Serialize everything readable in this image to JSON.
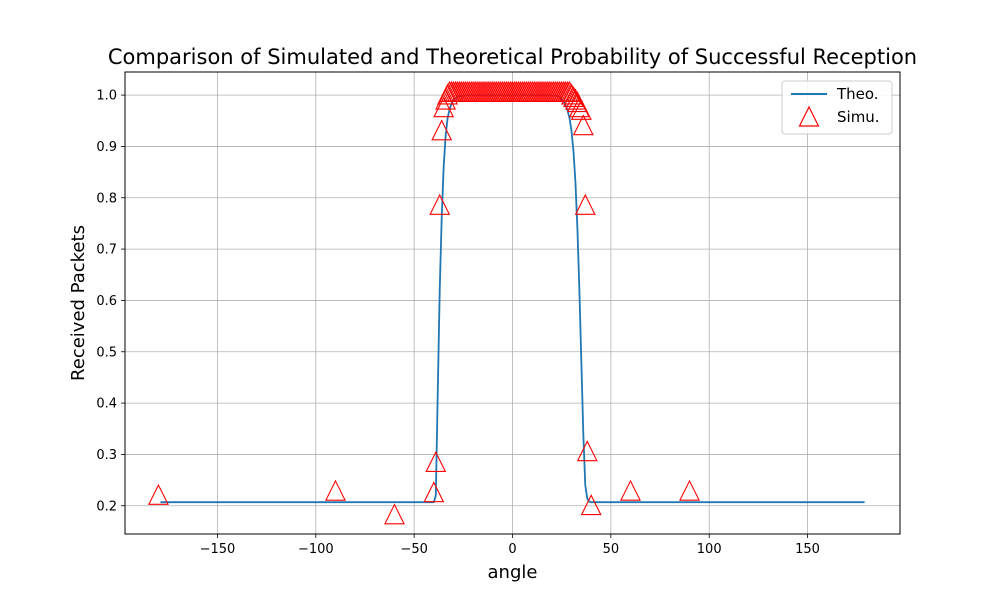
{
  "chart_data": {
    "type": "line",
    "title": "Comparison of Simulated and Theoretical Probability of Successful Reception",
    "xlabel": "angle",
    "ylabel": "Received Packets",
    "xlim": [
      -197,
      197
    ],
    "ylim": [
      0.145,
      1.045
    ],
    "xticks": [
      -150,
      -100,
      -50,
      0,
      50,
      100,
      150
    ],
    "yticks": [
      0.2,
      0.3,
      0.4,
      0.5,
      0.6,
      0.7,
      0.8,
      0.9,
      1.0
    ],
    "xtick_labels": [
      "−150",
      "−100",
      "−50",
      "0",
      "50",
      "100",
      "150"
    ],
    "ytick_labels": [
      "0.2",
      "0.3",
      "0.4",
      "0.5",
      "0.6",
      "0.7",
      "0.8",
      "0.9",
      "1.0"
    ],
    "grid": true,
    "legend": {
      "position": "top-right",
      "entries": [
        "Theo.",
        "Simu."
      ]
    },
    "colors": {
      "theo": "#1f77b4",
      "simu": "#ff0000"
    },
    "series": [
      {
        "name": "Theo.",
        "style": "line",
        "x": [
          -179,
          -40,
          -39,
          -38,
          -37,
          -36,
          -35,
          -34,
          -33,
          -32,
          -31,
          -30,
          -29,
          -28,
          -27,
          -26,
          -25,
          -24,
          -23,
          -22,
          -21,
          -20,
          -19,
          -18,
          -17,
          -16,
          -15,
          20,
          21,
          22,
          23,
          24,
          25,
          26,
          27,
          28,
          29,
          30,
          31,
          32,
          33,
          34,
          35,
          36,
          37,
          38,
          39,
          40,
          179
        ],
        "y": [
          0.207,
          0.207,
          0.22,
          0.42,
          0.62,
          0.76,
          0.86,
          0.92,
          0.955,
          0.972,
          0.983,
          0.99,
          0.994,
          0.997,
          0.998,
          0.999,
          0.9995,
          1.0,
          1.0,
          1.0,
          1.0,
          1.0,
          1.0,
          1.0,
          1.0,
          1.0,
          1.0,
          1.0,
          1.0,
          0.999,
          0.998,
          0.996,
          0.993,
          0.988,
          0.98,
          0.97,
          0.955,
          0.93,
          0.89,
          0.83,
          0.74,
          0.62,
          0.48,
          0.34,
          0.24,
          0.214,
          0.208,
          0.207,
          0.207
        ]
      },
      {
        "name": "Simu.",
        "style": "marker-triangle",
        "x": [
          -180,
          -90,
          -60,
          -40,
          -39,
          -37,
          -36,
          -35,
          -34,
          -33,
          -32,
          -31,
          -30,
          -29,
          -28,
          -27,
          -26,
          -25,
          -24,
          -23,
          -22,
          -21,
          -20,
          -19,
          -18,
          -17,
          -16,
          -15,
          -14,
          -13,
          -12,
          -11,
          -10,
          -9,
          -8,
          -7,
          -6,
          -5,
          -4,
          -3,
          -2,
          -1,
          0,
          1,
          2,
          3,
          4,
          5,
          6,
          7,
          8,
          9,
          10,
          11,
          12,
          13,
          14,
          15,
          16,
          17,
          18,
          19,
          20,
          21,
          22,
          23,
          24,
          25,
          26,
          27,
          28,
          29,
          30,
          31,
          32,
          33,
          34,
          35,
          36,
          37,
          38,
          40,
          60,
          90
        ],
        "y": [
          0.22,
          0.228,
          0.182,
          0.225,
          0.284,
          0.785,
          0.93,
          0.975,
          0.99,
          1.0,
          1.005,
          1.005,
          1.005,
          1.005,
          1.005,
          1.005,
          1.005,
          1.005,
          1.005,
          1.005,
          1.005,
          1.005,
          1.005,
          1.005,
          1.005,
          1.005,
          1.005,
          1.005,
          1.005,
          1.005,
          1.005,
          1.005,
          1.005,
          1.005,
          1.005,
          1.005,
          1.005,
          1.005,
          1.005,
          1.005,
          1.005,
          1.005,
          1.005,
          1.005,
          1.005,
          1.005,
          1.005,
          1.005,
          1.005,
          1.005,
          1.005,
          1.005,
          1.005,
          1.005,
          1.005,
          1.005,
          1.005,
          1.005,
          1.005,
          1.005,
          1.005,
          1.005,
          1.005,
          1.005,
          1.005,
          1.005,
          1.005,
          1.005,
          1.005,
          1.005,
          1.005,
          1.005,
          1.0,
          0.995,
          0.99,
          0.985,
          0.975,
          0.97,
          0.94,
          0.785,
          0.305,
          0.2,
          0.228,
          0.228
        ]
      }
    ]
  }
}
